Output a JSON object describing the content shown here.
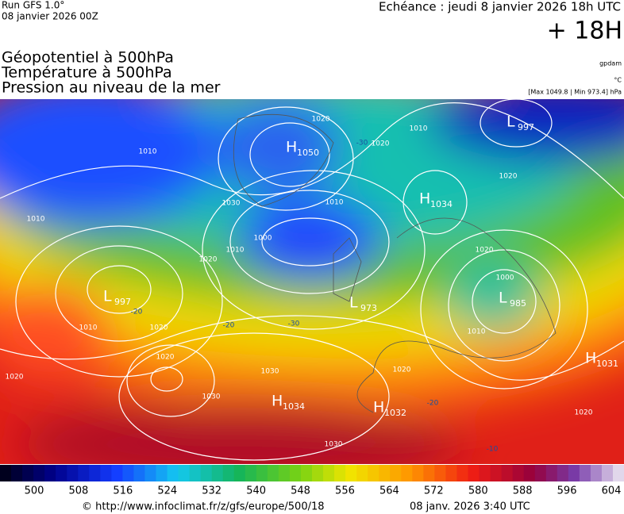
{
  "header": {
    "run": "Run GFS 1.0°",
    "date": "08 janvier 2026 00Z",
    "echeance": "Echéance : jeudi 8 janvier 2026 18h UTC",
    "lead": "+ 18H"
  },
  "titles": [
    "Géopotentiel à 500hPa",
    "Température à 500hPa",
    "Pression au niveau de la mer"
  ],
  "units": {
    "geopotential": "gpdam",
    "temperature": "°C",
    "pressure": "[Max 1049.8 | Min 973.4] hPa"
  },
  "centers": [
    {
      "letter": "H",
      "value": "1050"
    },
    {
      "letter": "L",
      "value": "997"
    },
    {
      "letter": "H",
      "value": "1034"
    },
    {
      "letter": "L",
      "value": "997"
    },
    {
      "letter": "L",
      "value": "973"
    },
    {
      "letter": "L",
      "value": "985"
    },
    {
      "letter": "H",
      "value": "1031"
    },
    {
      "letter": "H",
      "value": "1034"
    },
    {
      "letter": "H",
      "value": "1032"
    }
  ],
  "isobar_labels": [
    "1020",
    "1010",
    "1020",
    "1010",
    "1010",
    "1010",
    "1000",
    "1010",
    "1020",
    "1020",
    "1010",
    "1020",
    "1030",
    "1030",
    "1020",
    "1030",
    "1020",
    "1000",
    "1010",
    "1020",
    "1020",
    "1020",
    "1030"
  ],
  "temperature_labels": [
    "-20",
    "-20",
    "-30",
    "-30",
    "-10",
    "-20"
  ],
  "colorbar": {
    "labels": [
      500,
      508,
      516,
      524,
      532,
      540,
      548,
      556,
      564,
      572,
      580,
      588,
      596,
      604
    ]
  },
  "footer": {
    "source": "© http://www.infoclimat.fr/z/gfs/europe/500/18",
    "issued": "08 janv. 2026  3:40 UTC"
  }
}
